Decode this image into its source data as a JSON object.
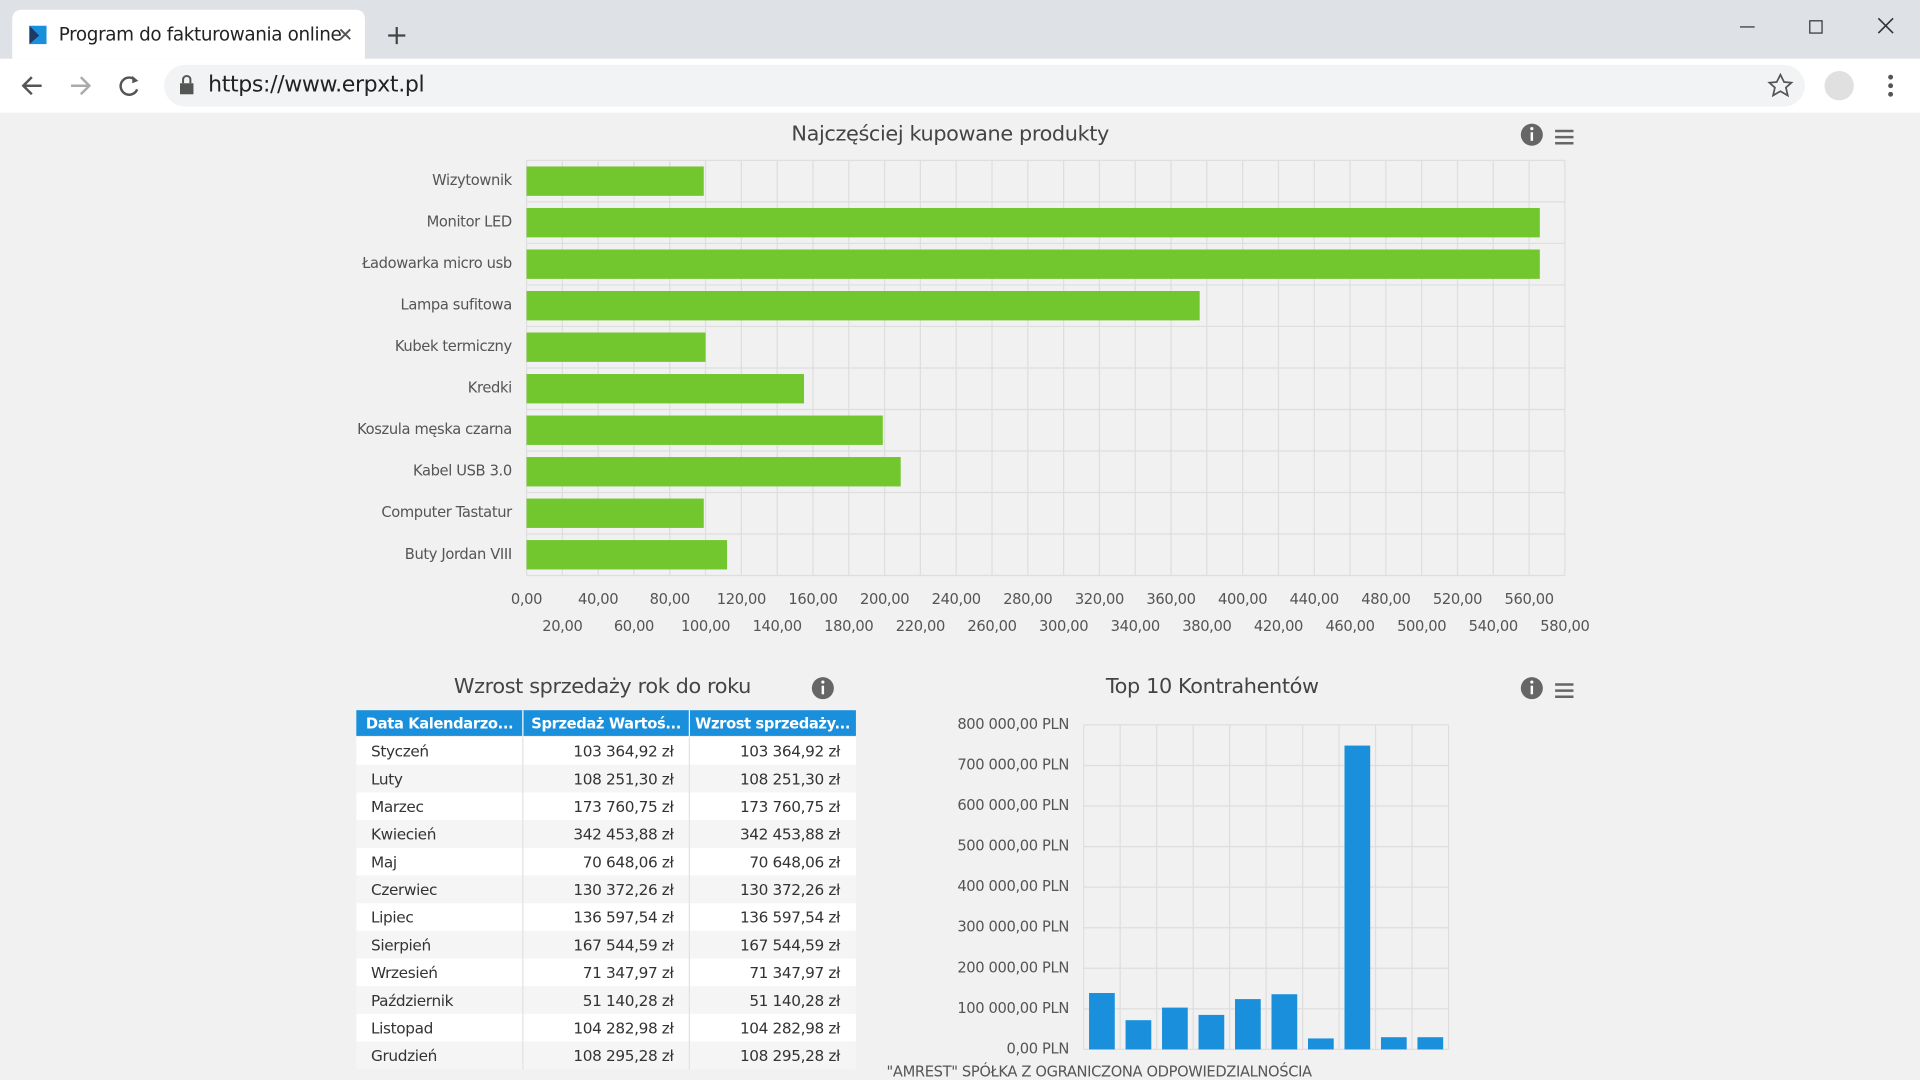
{
  "browser": {
    "tab_title": "Program do fakturowania online",
    "url": "https://www.erpxt.pl"
  },
  "chart_data": [
    {
      "type": "barh",
      "title": "Najczęściej kupowane produkty",
      "color": "#72c72e",
      "grid": true,
      "categories": [
        "Wizytownik",
        "Monitor LED",
        "Ładowarka micro usb",
        "Lampa sufitowa",
        "Kubek termiczny",
        "Kredki",
        "Koszula męska czarna",
        "Kabel USB 3.0",
        "Computer Tastatur",
        "Buty Jordan VIII"
      ],
      "values": [
        99,
        566,
        566,
        376,
        100,
        155,
        199,
        209,
        99,
        112
      ],
      "xlim": [
        0,
        580
      ],
      "xticks": [
        {
          "value": 0,
          "label": "0,00"
        },
        {
          "value": 20,
          "label": "20,00"
        },
        {
          "value": 40,
          "label": "40,00"
        },
        {
          "value": 60,
          "label": "60,00"
        },
        {
          "value": 80,
          "label": "80,00"
        },
        {
          "value": 100,
          "label": "100,00"
        },
        {
          "value": 120,
          "label": "120,00"
        },
        {
          "value": 140,
          "label": "140,00"
        },
        {
          "value": 160,
          "label": "160,00"
        },
        {
          "value": 180,
          "label": "180,00"
        },
        {
          "value": 200,
          "label": "200,00"
        },
        {
          "value": 220,
          "label": "220,00"
        },
        {
          "value": 240,
          "label": "240,00"
        },
        {
          "value": 260,
          "label": "260,00"
        },
        {
          "value": 280,
          "label": "280,00"
        },
        {
          "value": 300,
          "label": "300,00"
        },
        {
          "value": 320,
          "label": "320,00"
        },
        {
          "value": 340,
          "label": "340,00"
        },
        {
          "value": 360,
          "label": "360,00"
        },
        {
          "value": 380,
          "label": "380,00"
        },
        {
          "value": 400,
          "label": "400,00"
        },
        {
          "value": 420,
          "label": "420,00"
        },
        {
          "value": 440,
          "label": "440,00"
        },
        {
          "value": 460,
          "label": "460,00"
        },
        {
          "value": 480,
          "label": "480,00"
        },
        {
          "value": 500,
          "label": "500,00"
        },
        {
          "value": 520,
          "label": "520,00"
        },
        {
          "value": 540,
          "label": "540,00"
        },
        {
          "value": 560,
          "label": "560,00"
        },
        {
          "value": 580,
          "label": "580,00"
        }
      ]
    },
    {
      "type": "bar",
      "title": "Top 10 Kontrahentów",
      "color": "#1a8fdc",
      "grid": true,
      "categories": [
        "\"AMREST\" SPÓŁKA Z OGRANICZONA ODPOWIEDZIALNOŚCIA",
        null,
        null,
        null,
        null,
        null,
        null,
        null,
        null,
        null
      ],
      "values": [
        139000,
        72000,
        103000,
        85000,
        124000,
        136000,
        27000,
        749000,
        30000,
        30000
      ],
      "ylim": [
        0,
        800000
      ],
      "yticks": [
        {
          "value": 0,
          "label": "0,00 PLN"
        },
        {
          "value": 100000,
          "label": "100 000,00 PLN"
        },
        {
          "value": 200000,
          "label": "200 000,00 PLN"
        },
        {
          "value": 300000,
          "label": "300 000,00 PLN"
        },
        {
          "value": 400000,
          "label": "400 000,00 PLN"
        },
        {
          "value": 500000,
          "label": "500 000,00 PLN"
        },
        {
          "value": 600000,
          "label": "600 000,00 PLN"
        },
        {
          "value": 700000,
          "label": "700 000,00 PLN"
        },
        {
          "value": 800000,
          "label": "800 000,00 PLN"
        }
      ]
    }
  ],
  "table": {
    "title": "Wzrost sprzedaży rok do roku",
    "header": [
      "Data Kalendarzo...",
      "Sprzedaż Wartoś...",
      "Wzrost sprzedaży..."
    ],
    "rows": [
      [
        "Styczeń",
        "103 364,92 zł",
        "103 364,92 zł"
      ],
      [
        "Luty",
        "108 251,30 zł",
        "108 251,30 zł"
      ],
      [
        "Marzec",
        "173 760,75 zł",
        "173 760,75 zł"
      ],
      [
        "Kwiecień",
        "342 453,88 zł",
        "342 453,88 zł"
      ],
      [
        "Maj",
        "70 648,06 zł",
        "70 648,06 zł"
      ],
      [
        "Czerwiec",
        "130 372,26 zł",
        "130 372,26 zł"
      ],
      [
        "Lipiec",
        "136 597,54 zł",
        "136 597,54 zł"
      ],
      [
        "Sierpień",
        "167 544,59 zł",
        "167 544,59 zł"
      ],
      [
        "Wrzesień",
        "71 347,97 zł",
        "71 347,97 zł"
      ],
      [
        "Październik",
        "51 140,28 zł",
        "51 140,28 zł"
      ],
      [
        "Listopad",
        "104 282,98 zł",
        "104 282,98 zł"
      ],
      [
        "Grudzień",
        "108 295,28 zł",
        "108 295,28 zł"
      ]
    ]
  }
}
